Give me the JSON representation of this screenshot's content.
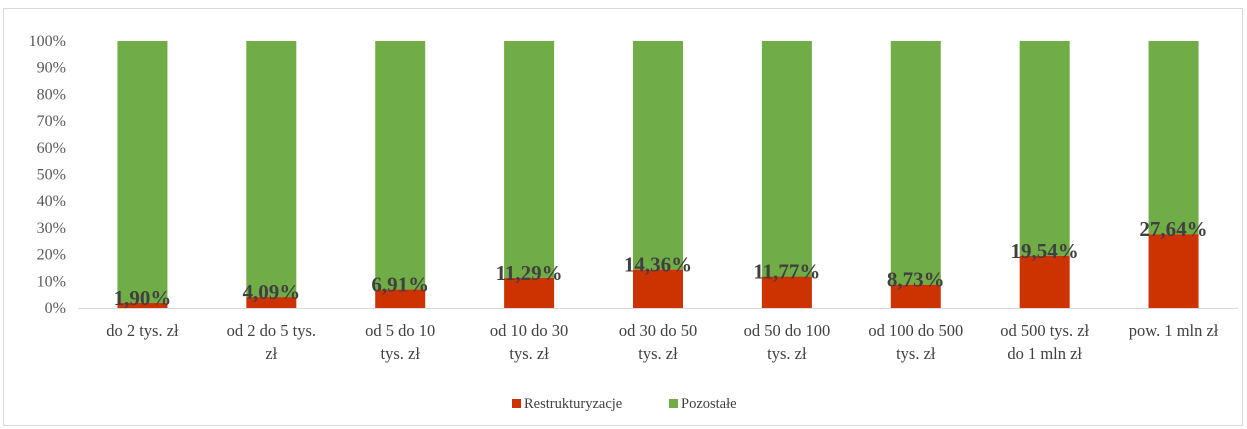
{
  "chart_data": {
    "type": "bar",
    "stacked": "percent",
    "categories": [
      [
        "do 2 tys. zł"
      ],
      [
        "od 2 do 5 tys.",
        "zł"
      ],
      [
        "od 5 do 10",
        "tys. zł"
      ],
      [
        "od 10 do 30",
        "tys. zł"
      ],
      [
        "od 30 do 50",
        "tys. zł"
      ],
      [
        "od 50 do 100",
        "tys. zł"
      ],
      [
        "od 100 do 500",
        "tys. zł"
      ],
      [
        "od 500 tys. zł",
        "do 1 mln zł"
      ],
      [
        "pow. 1 mln zł"
      ]
    ],
    "series": [
      {
        "name": "Restrukturyzacje",
        "color": "#cc3300",
        "values": [
          1.9,
          4.09,
          6.91,
          11.29,
          14.36,
          11.77,
          8.73,
          19.54,
          27.64
        ],
        "labels": [
          "1,90%",
          "4,09%",
          "6,91%",
          "11,29%",
          "14,36%",
          "11,77%",
          "8,73%",
          "19,54%",
          "27,64%"
        ]
      },
      {
        "name": "Pozostałe",
        "color": "#70ad47",
        "values": [
          98.1,
          95.91,
          93.09,
          88.71,
          85.64,
          88.23,
          91.27,
          80.46,
          72.36
        ]
      }
    ],
    "ylim": [
      0,
      100
    ],
    "yticks": [
      "0%",
      "10%",
      "20%",
      "30%",
      "40%",
      "50%",
      "60%",
      "70%",
      "80%",
      "90%",
      "100%"
    ],
    "grid": false,
    "legend": "bottom",
    "title": "",
    "xlabel": "",
    "ylabel": ""
  }
}
